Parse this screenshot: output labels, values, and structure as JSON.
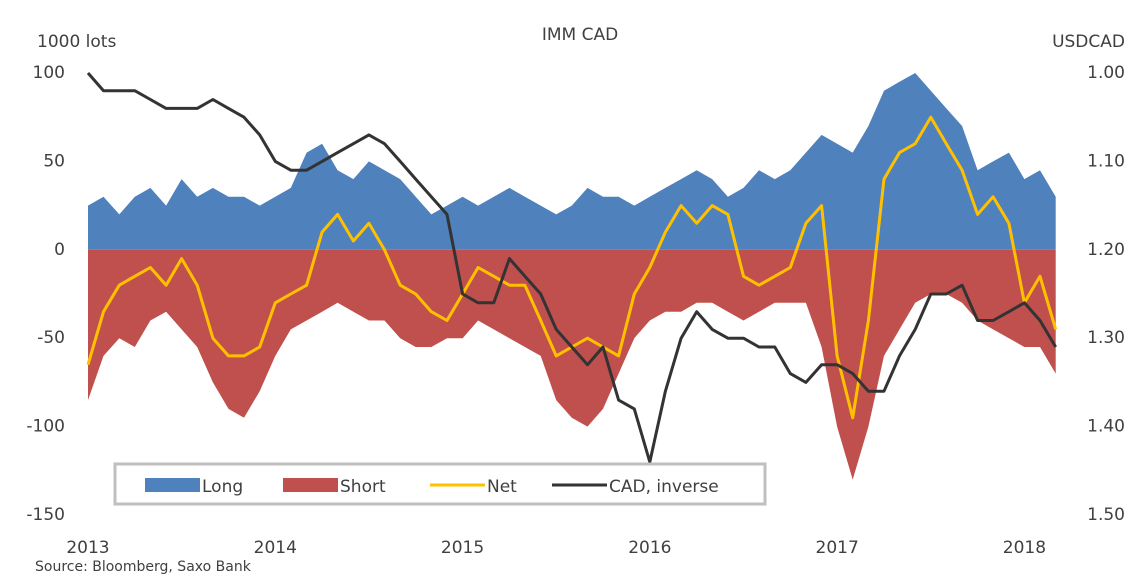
{
  "chart_data": {
    "type": "area_line",
    "title": "IMM CAD",
    "y_label": "1000 lots",
    "y2_label": "USDCAD",
    "source": "Source: Bloomberg,  Saxo Bank",
    "x": [
      2013,
      2013.083,
      2013.167,
      2013.25,
      2013.333,
      2013.417,
      2013.5,
      2013.583,
      2013.667,
      2013.75,
      2013.833,
      2013.917,
      2014,
      2014.083,
      2014.167,
      2014.25,
      2014.333,
      2014.417,
      2014.5,
      2014.583,
      2014.667,
      2014.75,
      2014.833,
      2014.917,
      2015,
      2015.083,
      2015.167,
      2015.25,
      2015.333,
      2015.417,
      2015.5,
      2015.583,
      2015.667,
      2015.75,
      2015.833,
      2015.917,
      2016,
      2016.083,
      2016.167,
      2016.25,
      2016.333,
      2016.417,
      2016.5,
      2016.583,
      2016.667,
      2016.75,
      2016.833,
      2016.917,
      2017,
      2017.083,
      2017.167,
      2017.25,
      2017.333,
      2017.417,
      2017.5,
      2017.583,
      2017.667,
      2017.75,
      2017.833,
      2017.917,
      2018,
      2018.083,
      2018.167
    ],
    "xlim": [
      2013,
      2018.19
    ],
    "xticks": [
      2013,
      2014,
      2015,
      2016,
      2017,
      2018
    ],
    "ylim": [
      -150,
      100
    ],
    "yticks": [
      100,
      50,
      0,
      -50,
      -100,
      -150
    ],
    "y2lim": [
      1.0,
      1.5
    ],
    "y2_inverted": true,
    "y2ticks": [
      {
        "value": 1.0,
        "label": "1.00"
      },
      {
        "value": 1.1,
        "label": "1.10"
      },
      {
        "value": 1.2,
        "label": "1.20"
      },
      {
        "value": 1.3,
        "label": "1.30"
      },
      {
        "value": 1.4,
        "label": "1.40"
      },
      {
        "value": 1.5,
        "label": "1.50"
      }
    ],
    "series": [
      {
        "name": "Long",
        "kind": "area",
        "color": "#4f81bd",
        "values": [
          25,
          30,
          20,
          30,
          35,
          25,
          40,
          30,
          35,
          30,
          30,
          25,
          30,
          35,
          55,
          60,
          45,
          40,
          50,
          45,
          40,
          30,
          20,
          25,
          30,
          25,
          30,
          35,
          30,
          25,
          20,
          25,
          35,
          30,
          30,
          25,
          30,
          35,
          40,
          45,
          40,
          30,
          35,
          45,
          40,
          45,
          55,
          65,
          60,
          55,
          70,
          90,
          95,
          100,
          90,
          80,
          70,
          45,
          50,
          55,
          40,
          45,
          30
        ]
      },
      {
        "name": "Short",
        "kind": "area",
        "color": "#c0504d",
        "values": [
          -85,
          -60,
          -50,
          -55,
          -40,
          -35,
          -45,
          -55,
          -75,
          -90,
          -95,
          -80,
          -60,
          -45,
          -40,
          -35,
          -30,
          -35,
          -40,
          -40,
          -50,
          -55,
          -55,
          -50,
          -50,
          -40,
          -45,
          -50,
          -55,
          -60,
          -85,
          -95,
          -100,
          -90,
          -70,
          -50,
          -40,
          -35,
          -35,
          -30,
          -30,
          -35,
          -40,
          -35,
          -30,
          -30,
          -30,
          -55,
          -100,
          -130,
          -100,
          -60,
          -45,
          -30,
          -25,
          -25,
          -30,
          -40,
          -45,
          -50,
          -55,
          -55,
          -70
        ]
      },
      {
        "name": "Net",
        "kind": "line",
        "color": "#ffc000",
        "values": [
          -65,
          -35,
          -20,
          -15,
          -10,
          -20,
          -5,
          -20,
          -50,
          -60,
          -60,
          -55,
          -30,
          -25,
          -20,
          10,
          20,
          5,
          15,
          0,
          -20,
          -25,
          -35,
          -40,
          -25,
          -10,
          -15,
          -20,
          -20,
          -40,
          -60,
          -55,
          -50,
          -55,
          -60,
          -25,
          -10,
          10,
          25,
          15,
          25,
          20,
          -15,
          -20,
          -15,
          -10,
          15,
          25,
          -60,
          -95,
          -40,
          40,
          55,
          60,
          75,
          60,
          45,
          20,
          30,
          15,
          -30,
          -15,
          -45
        ]
      },
      {
        "name": "CAD, inverse",
        "kind": "line",
        "axis": "y2",
        "color": "#333333",
        "values": [
          1.0,
          1.02,
          1.02,
          1.02,
          1.03,
          1.04,
          1.04,
          1.04,
          1.03,
          1.04,
          1.05,
          1.07,
          1.1,
          1.11,
          1.11,
          1.1,
          1.09,
          1.08,
          1.07,
          1.08,
          1.1,
          1.12,
          1.14,
          1.16,
          1.25,
          1.26,
          1.26,
          1.21,
          1.23,
          1.25,
          1.29,
          1.31,
          1.33,
          1.31,
          1.37,
          1.38,
          1.44,
          1.36,
          1.3,
          1.27,
          1.29,
          1.3,
          1.3,
          1.31,
          1.31,
          1.34,
          1.35,
          1.33,
          1.33,
          1.34,
          1.36,
          1.36,
          1.32,
          1.29,
          1.25,
          1.25,
          1.24,
          1.28,
          1.28,
          1.27,
          1.26,
          1.28,
          1.31
        ]
      }
    ]
  }
}
